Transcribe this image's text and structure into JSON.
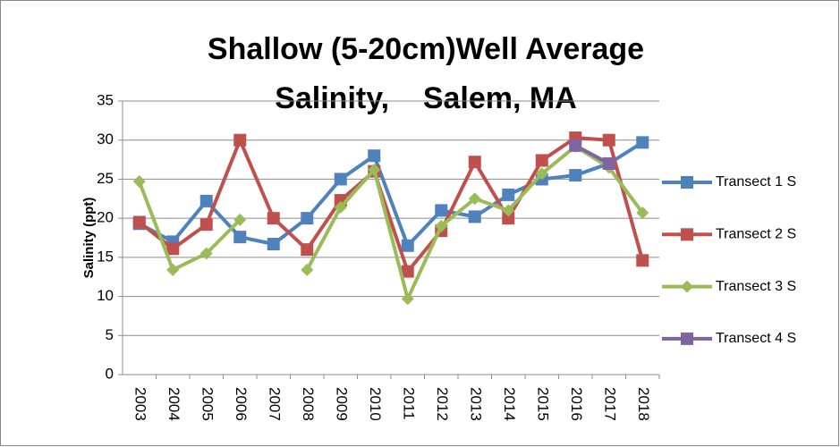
{
  "chart_data": {
    "type": "line",
    "title": [
      "Shallow (5-20cm)Well Average",
      "Salinity,    Salem, MA"
    ],
    "y_label": "Salinity (ppt)",
    "categories": [
      "2003",
      "2004",
      "2005",
      "2006",
      "2007",
      "2008",
      "2009",
      "2010",
      "2011",
      "2012",
      "2013",
      "2014",
      "2015",
      "2016",
      "2017",
      "2018"
    ],
    "series": [
      {
        "name": "Transect 1 S",
        "color": "#4f81bd",
        "marker": "square",
        "values": [
          19.3,
          17,
          22.2,
          17.6,
          16.7,
          20,
          25,
          28,
          16.5,
          21,
          20.2,
          23,
          25,
          25.5,
          27,
          29.7
        ]
      },
      {
        "name": "Transect 2 S",
        "color": "#c0504d",
        "marker": "square",
        "values": [
          19.5,
          16.1,
          19.2,
          30,
          20,
          16,
          22.3,
          26,
          13.2,
          18.4,
          27.2,
          20,
          27.4,
          30.3,
          30,
          14.6
        ]
      },
      {
        "name": "Transect 3 S",
        "color": "#9bbb59",
        "marker": "diamond",
        "values": [
          24.7,
          13.4,
          15.5,
          19.8,
          null,
          13.4,
          21.4,
          26.2,
          9.7,
          19,
          22.5,
          21,
          25.7,
          29.2,
          26.5,
          20.7
        ]
      },
      {
        "name": "Transect 4 S",
        "color": "#8064a2",
        "marker": "square",
        "values": [
          null,
          null,
          null,
          null,
          null,
          null,
          null,
          null,
          null,
          null,
          null,
          null,
          null,
          29.3,
          27,
          null
        ]
      }
    ],
    "ylim": [
      0,
      35
    ],
    "yticks": [
      0,
      5,
      10,
      15,
      20,
      25,
      30,
      35
    ],
    "grid": true,
    "legend": "right"
  }
}
